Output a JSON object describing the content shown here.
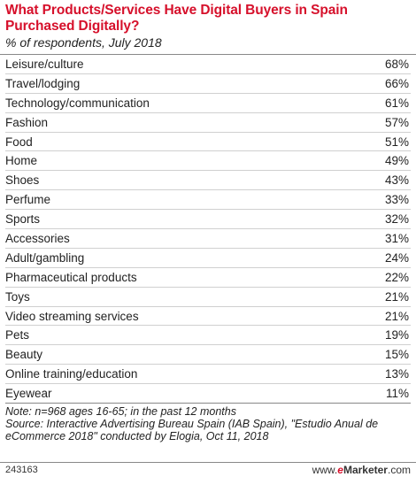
{
  "chart_data": {
    "type": "table",
    "title": "What Products/Services Have Digital Buyers in Spain Purchased Digitally?",
    "subtitle": "% of respondents, July 2018",
    "categories": [
      "Leisure/culture",
      "Travel/lodging",
      "Technology/communication",
      "Fashion",
      "Food",
      "Home",
      "Shoes",
      "Perfume",
      "Sports",
      "Accessories",
      "Adult/gambling",
      "Pharmaceutical products",
      "Toys",
      "Video streaming services",
      "Pets",
      "Beauty",
      "Online training/education",
      "Eyewear"
    ],
    "values": [
      68,
      66,
      61,
      57,
      51,
      49,
      43,
      33,
      32,
      31,
      24,
      22,
      21,
      21,
      19,
      15,
      13,
      11
    ],
    "value_suffix": "%"
  },
  "notes": {
    "note": "Note: n=968 ages 16-65; in the past 12 months",
    "source": "Source: Interactive Advertising Bureau Spain (IAB Spain), \"Estudio Anual de eCommerce 2018\" conducted by Elogia, Oct 11, 2018"
  },
  "footer": {
    "id": "243163",
    "brand_prefix": "www.",
    "brand_e": "e",
    "brand_rest": "Marketer",
    "brand_suffix": ".com"
  }
}
